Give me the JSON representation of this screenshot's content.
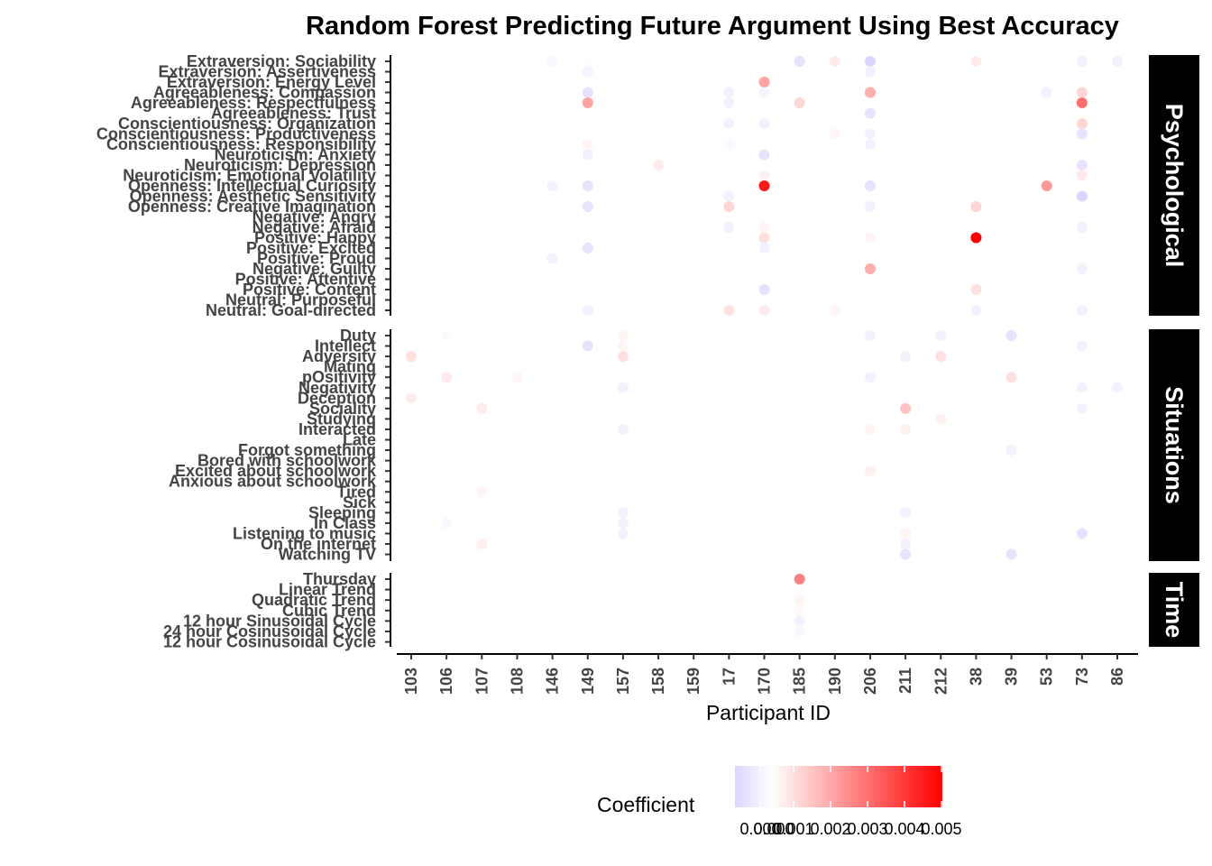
{
  "chart_data": {
    "type": "scatter",
    "title": "Random Forest Predicting Future Argument Using Best Accuracy",
    "xlabel": "Participant ID",
    "legend_title": "Coefficient",
    "legend_ticks": [
      "0.000",
      "0.000",
      "0.001",
      "0.002",
      "0.003",
      "0.004",
      "0.005"
    ],
    "colors": {
      "low": "#ddd4ff",
      "mid": "#ffffff",
      "high": "#ff0000"
    },
    "participants": [
      "103",
      "106",
      "107",
      "108",
      "146",
      "149",
      "157",
      "158",
      "159",
      "17",
      "170",
      "185",
      "190",
      "206",
      "211",
      "212",
      "38",
      "39",
      "53",
      "73",
      "86"
    ],
    "panels": [
      {
        "name": "Psychological",
        "variables": [
          "Extraversion: Sociability",
          "Extraversion: Assertiveness",
          "Extraversion: Energy Level",
          "Agreeableness: Compassion",
          "Agreeableness: Respectfulness",
          "Agreeableness: Trust",
          "Conscientiousness: Organization",
          "Conscientiousness: Productiveness",
          "Conscientiousness: Responsibility",
          "Neuroticism: Anxiety",
          "Neuroticism: Depression",
          "Neuroticism: Emotional Volatility",
          "Openness: Intellectual Curiosity",
          "Openness: Aesthetic Sensitivity",
          "Openness: Creative Imagination",
          "Negative: Angry",
          "Negative: Afraid",
          "Positive: Happy",
          "Positive: Excited",
          "Positive: Proud",
          "Negative: Guilty",
          "Positive: Attentive",
          "Positive: Content",
          "Neutral: Purposeful",
          "Neutral: Goal-directed"
        ]
      },
      {
        "name": "Situations",
        "variables": [
          "Duty",
          "Intellect",
          "Adversity",
          "Mating",
          "pOsitivity",
          "Negativity",
          "Deception",
          "Sociality",
          "Studying",
          "Interacted",
          "Late",
          "Forgot something",
          "Bored with schoolwork",
          "Excited about schoolwork",
          "Anxious about schoolwork",
          "Tired",
          "Sick",
          "Sleeping",
          "In Class",
          "Listening to music",
          "On the internet",
          "Watching TV"
        ]
      },
      {
        "name": "Time",
        "variables": [
          "Thursday",
          "Linear Trend",
          "Quadratic Trend",
          "Cubic Trend",
          "12 hour Sinusoidal Cycle",
          "24 hour Cosinusoidal Cycle",
          "12 hour Cosinusoidal Cycle"
        ]
      }
    ],
    "points": [
      {
        "p": "146",
        "v": "Extraversion: Sociability",
        "c": -5e-05
      },
      {
        "p": "149",
        "v": "Extraversion: Sociability",
        "c": 5e-05
      },
      {
        "p": "185",
        "v": "Extraversion: Sociability",
        "c": -0.0002
      },
      {
        "p": "190",
        "v": "Extraversion: Sociability",
        "c": 0.0004
      },
      {
        "p": "206",
        "v": "Extraversion: Sociability",
        "c": -0.0003
      },
      {
        "p": "38",
        "v": "Extraversion: Sociability",
        "c": 0.0004
      },
      {
        "p": "73",
        "v": "Extraversion: Sociability",
        "c": -0.0001
      },
      {
        "p": "86",
        "v": "Extraversion: Sociability",
        "c": -0.0001
      },
      {
        "p": "149",
        "v": "Extraversion: Assertiveness",
        "c": -8e-05
      },
      {
        "p": "206",
        "v": "Extraversion: Assertiveness",
        "c": -0.0001
      },
      {
        "p": "170",
        "v": "Extraversion: Energy Level",
        "c": 0.0018
      },
      {
        "p": "149",
        "v": "Agreeableness: Compassion",
        "c": -0.0002
      },
      {
        "p": "170",
        "v": "Agreeableness: Compassion",
        "c": -8e-05
      },
      {
        "p": "17",
        "v": "Agreeableness: Compassion",
        "c": -0.0001
      },
      {
        "p": "206",
        "v": "Agreeableness: Compassion",
        "c": 0.0016
      },
      {
        "p": "53",
        "v": "Agreeableness: Compassion",
        "c": -0.0001
      },
      {
        "p": "73",
        "v": "Agreeableness: Compassion",
        "c": 0.0008
      },
      {
        "p": "149",
        "v": "Agreeableness: Respectfulness",
        "c": 0.0018
      },
      {
        "p": "185",
        "v": "Agreeableness: Respectfulness",
        "c": 0.0008
      },
      {
        "p": "17",
        "v": "Agreeableness: Respectfulness",
        "c": -0.0001
      },
      {
        "p": "73",
        "v": "Agreeableness: Respectfulness",
        "c": 0.0028
      },
      {
        "p": "206",
        "v": "Agreeableness: Trust",
        "c": -0.0002
      },
      {
        "p": "17",
        "v": "Conscientiousness: Organization",
        "c": -0.0001
      },
      {
        "p": "170",
        "v": "Conscientiousness: Organization",
        "c": -0.0001
      },
      {
        "p": "73",
        "v": "Conscientiousness: Organization",
        "c": 0.0008
      },
      {
        "p": "190",
        "v": "Conscientiousness: Productiveness",
        "c": 0.0002
      },
      {
        "p": "206",
        "v": "Conscientiousness: Productiveness",
        "c": -0.0001
      },
      {
        "p": "73",
        "v": "Conscientiousness: Productiveness",
        "c": -0.0002
      },
      {
        "p": "149",
        "v": "Conscientiousness: Responsibility",
        "c": 0.0002
      },
      {
        "p": "206",
        "v": "Conscientiousness: Responsibility",
        "c": -0.0001
      },
      {
        "p": "17",
        "v": "Conscientiousness: Responsibility",
        "c": -5e-05
      },
      {
        "p": "170",
        "v": "Neuroticism: Anxiety",
        "c": -0.0002
      },
      {
        "p": "149",
        "v": "Neuroticism: Anxiety",
        "c": -0.0001
      },
      {
        "p": "158",
        "v": "Neuroticism: Depression",
        "c": 0.0004
      },
      {
        "p": "73",
        "v": "Neuroticism: Depression",
        "c": -0.0002
      },
      {
        "p": "170",
        "v": "Neuroticism: Emotional Volatility",
        "c": 0.0003
      },
      {
        "p": "73",
        "v": "Neuroticism: Emotional Volatility",
        "c": 0.0004
      },
      {
        "p": "146",
        "v": "Openness: Intellectual Curiosity",
        "c": -0.0001
      },
      {
        "p": "149",
        "v": "Openness: Intellectual Curiosity",
        "c": -0.0002
      },
      {
        "p": "170",
        "v": "Openness: Intellectual Curiosity",
        "c": 0.0045
      },
      {
        "p": "206",
        "v": "Openness: Intellectual Curiosity",
        "c": -0.0002
      },
      {
        "p": "53",
        "v": "Openness: Intellectual Curiosity",
        "c": 0.002
      },
      {
        "p": "17",
        "v": "Openness: Aesthetic Sensitivity",
        "c": -0.0001
      },
      {
        "p": "73",
        "v": "Openness: Aesthetic Sensitivity",
        "c": -0.0003
      },
      {
        "p": "17",
        "v": "Openness: Creative Imagination",
        "c": 0.0008
      },
      {
        "p": "149",
        "v": "Openness: Creative Imagination",
        "c": -0.0002
      },
      {
        "p": "38",
        "v": "Openness: Creative Imagination",
        "c": 0.0008
      },
      {
        "p": "206",
        "v": "Openness: Creative Imagination",
        "c": -0.0001
      },
      {
        "p": "17",
        "v": "Negative: Afraid",
        "c": -0.0001
      },
      {
        "p": "170",
        "v": "Negative: Afraid",
        "c": 0.0002
      },
      {
        "p": "73",
        "v": "Negative: Afraid",
        "c": -0.0001
      },
      {
        "p": "170",
        "v": "Positive: Happy",
        "c": 0.0006
      },
      {
        "p": "38",
        "v": "Positive: Happy",
        "c": 0.005
      },
      {
        "p": "206",
        "v": "Positive: Happy",
        "c": 0.0002
      },
      {
        "p": "149",
        "v": "Positive: Excited",
        "c": -0.0002
      },
      {
        "p": "170",
        "v": "Positive: Excited",
        "c": -0.0001
      },
      {
        "p": "146",
        "v": "Positive: Proud",
        "c": -0.0001
      },
      {
        "p": "206",
        "v": "Negative: Guilty",
        "c": 0.0016
      },
      {
        "p": "73",
        "v": "Negative: Guilty",
        "c": -0.0001
      },
      {
        "p": "170",
        "v": "Positive: Content",
        "c": -0.0002
      },
      {
        "p": "38",
        "v": "Positive: Content",
        "c": 0.0006
      },
      {
        "p": "17",
        "v": "Neutral: Goal-directed",
        "c": 0.0006
      },
      {
        "p": "170",
        "v": "Neutral: Goal-directed",
        "c": 0.0004
      },
      {
        "p": "190",
        "v": "Neutral: Goal-directed",
        "c": 0.0002
      },
      {
        "p": "38",
        "v": "Neutral: Goal-directed",
        "c": -0.0001
      },
      {
        "p": "73",
        "v": "Neutral: Goal-directed",
        "c": -0.0001
      },
      {
        "p": "149",
        "v": "Neutral: Goal-directed",
        "c": -0.0001
      },
      {
        "p": "157",
        "v": "Duty",
        "c": 0.0002
      },
      {
        "p": "106",
        "v": "Duty",
        "c": 0.0001
      },
      {
        "p": "206",
        "v": "Duty",
        "c": -0.0001
      },
      {
        "p": "212",
        "v": "Duty",
        "c": -0.0001
      },
      {
        "p": "39",
        "v": "Duty",
        "c": -0.0002
      },
      {
        "p": "149",
        "v": "Intellect",
        "c": -0.0002
      },
      {
        "p": "157",
        "v": "Intellect",
        "c": 0.0002
      },
      {
        "p": "73",
        "v": "Intellect",
        "c": -0.0001
      },
      {
        "p": "103",
        "v": "Adversity",
        "c": 0.0006
      },
      {
        "p": "157",
        "v": "Adversity",
        "c": 0.0006
      },
      {
        "p": "212",
        "v": "Adversity",
        "c": 0.0006
      },
      {
        "p": "211",
        "v": "Adversity",
        "c": -0.0001
      },
      {
        "p": "106",
        "v": "pOsitivity",
        "c": 0.0004
      },
      {
        "p": "108",
        "v": "pOsitivity",
        "c": 0.0002
      },
      {
        "p": "206",
        "v": "pOsitivity",
        "c": -0.0001
      },
      {
        "p": "39",
        "v": "pOsitivity",
        "c": 0.0006
      },
      {
        "p": "157",
        "v": "Negativity",
        "c": -0.0001
      },
      {
        "p": "73",
        "v": "Negativity",
        "c": -0.0001
      },
      {
        "p": "86",
        "v": "Negativity",
        "c": -0.0001
      },
      {
        "p": "103",
        "v": "Deception",
        "c": 0.0004
      },
      {
        "p": "107",
        "v": "Sociality",
        "c": 0.0004
      },
      {
        "p": "211",
        "v": "Sociality",
        "c": 0.0012
      },
      {
        "p": "73",
        "v": "Sociality",
        "c": -0.0001
      },
      {
        "p": "212",
        "v": "Studying",
        "c": 0.0003
      },
      {
        "p": "157",
        "v": "Interacted",
        "c": -0.0001
      },
      {
        "p": "211",
        "v": "Interacted",
        "c": 0.0003
      },
      {
        "p": "206",
        "v": "Interacted",
        "c": 0.0002
      },
      {
        "p": "39",
        "v": "Forgot something",
        "c": -0.0001
      },
      {
        "p": "206",
        "v": "Excited about schoolwork",
        "c": 0.0003
      },
      {
        "p": "107",
        "v": "Tired",
        "c": 0.0002
      },
      {
        "p": "157",
        "v": "Sleeping",
        "c": -0.0001
      },
      {
        "p": "211",
        "v": "Sleeping",
        "c": -0.0001
      },
      {
        "p": "106",
        "v": "In Class",
        "c": -5e-05
      },
      {
        "p": "157",
        "v": "In Class",
        "c": -0.0001
      },
      {
        "p": "157",
        "v": "Listening to music",
        "c": -0.0001
      },
      {
        "p": "73",
        "v": "Listening to music",
        "c": -0.0002
      },
      {
        "p": "211",
        "v": "Listening to music",
        "c": 0.0002
      },
      {
        "p": "107",
        "v": "On the internet",
        "c": 0.0003
      },
      {
        "p": "211",
        "v": "On the internet",
        "c": -0.0001
      },
      {
        "p": "211",
        "v": "Watching TV",
        "c": -0.0002
      },
      {
        "p": "39",
        "v": "Watching TV",
        "c": -0.0002
      },
      {
        "p": "185",
        "v": "Thursday",
        "c": 0.0025
      },
      {
        "p": "185",
        "v": "Linear Trend",
        "c": 5e-05
      },
      {
        "p": "185",
        "v": "Quadratic Trend",
        "c": 0.0002
      },
      {
        "p": "185",
        "v": "Cubic Trend",
        "c": 0.0001
      },
      {
        "p": "185",
        "v": "12 hour Sinusoidal Cycle",
        "c": -0.0001
      },
      {
        "p": "185",
        "v": "24 hour Cosinusoidal Cycle",
        "c": -5e-05
      }
    ]
  }
}
